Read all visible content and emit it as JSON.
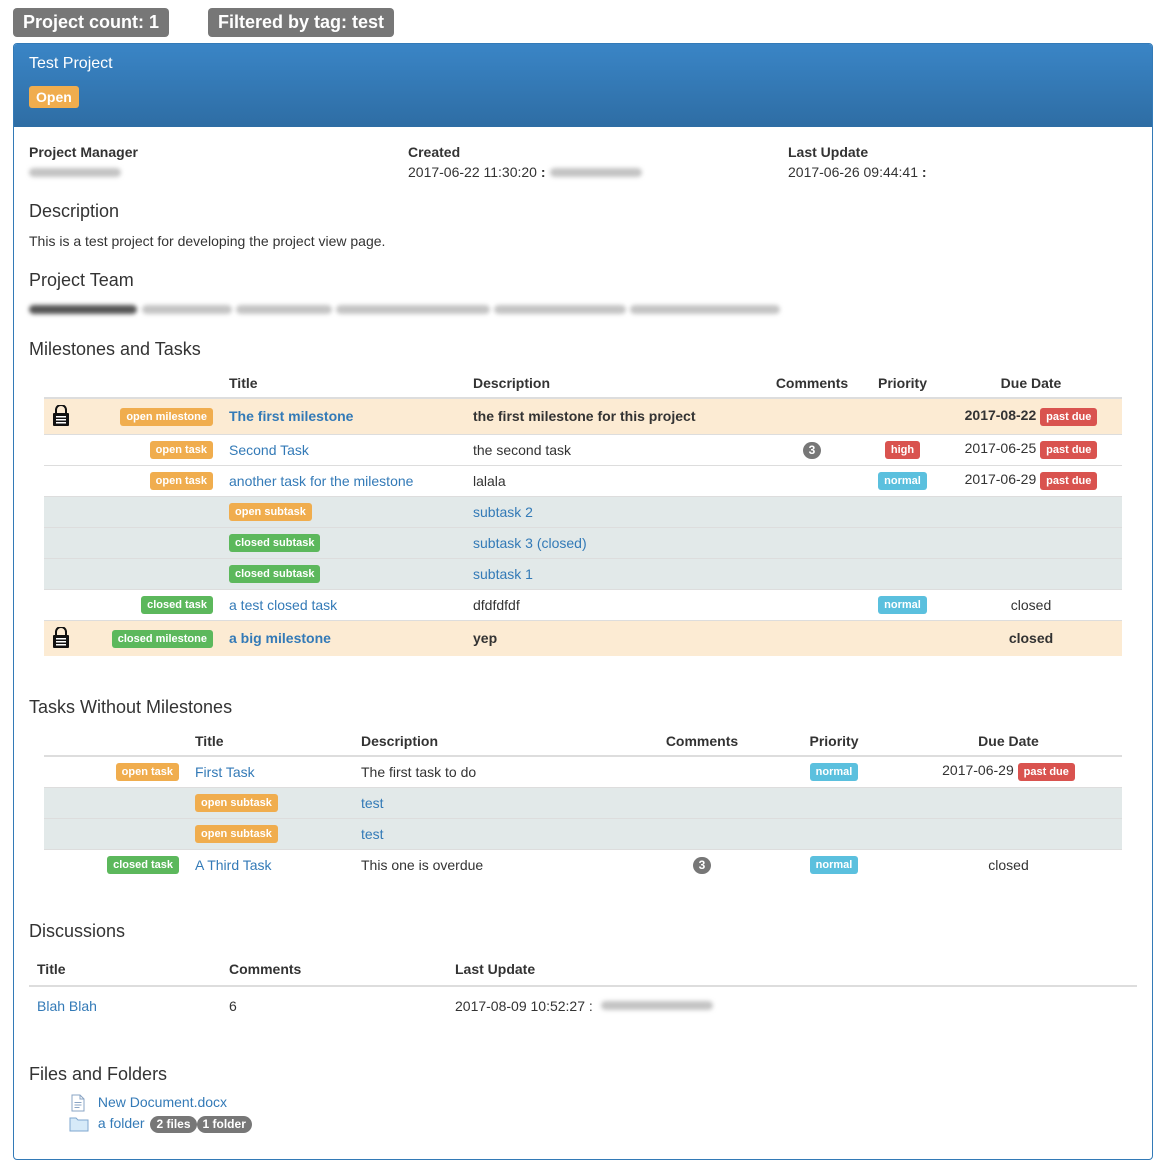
{
  "header": {
    "project_count": "Project count: 1",
    "filtered_by": "Filtered by tag: test"
  },
  "project": {
    "title": "Test Project",
    "status": "Open",
    "manager_label": "Project Manager",
    "created_label": "Created",
    "created_value": "2017-06-22 11:30:20",
    "created_sep": ":",
    "updated_label": "Last Update",
    "updated_value": "2017-06-26 09:44:41",
    "updated_sep": ":",
    "description_heading": "Description",
    "description": "This is a test project for developing the project view page.",
    "team_heading": "Project Team"
  },
  "milestones": {
    "heading": "Milestones and Tasks",
    "columns": {
      "title": "Title",
      "description": "Description",
      "comments": "Comments",
      "priority": "Priority",
      "due": "Due Date"
    },
    "rows": [
      {
        "kind": "milestone",
        "badge": "open milestone",
        "title": "The first milestone",
        "description": "the first milestone for this project",
        "due": "2017-08-22",
        "due_badge": "past due"
      },
      {
        "kind": "task",
        "badge": "open task",
        "title": "Second Task",
        "description": "the second task",
        "comments": "3",
        "priority": "high",
        "due": "2017-06-25",
        "due_badge": "past due"
      },
      {
        "kind": "task",
        "badge": "open task",
        "title": "another task for the milestone",
        "description": "lalala",
        "priority": "normal",
        "due": "2017-06-29",
        "due_badge": "past due"
      },
      {
        "kind": "subtask",
        "badge": "open subtask",
        "title": "subtask 2"
      },
      {
        "kind": "subtask",
        "badge": "closed subtask",
        "title": "subtask 3 (closed)"
      },
      {
        "kind": "subtask",
        "badge": "closed subtask",
        "title": "subtask 1"
      },
      {
        "kind": "task",
        "badge": "closed task",
        "title": "a test closed task",
        "description": "dfdfdfdf",
        "priority": "normal",
        "due": "closed"
      },
      {
        "kind": "milestone",
        "badge": "closed milestone",
        "title": "a big milestone",
        "description": "yep",
        "due": "closed"
      }
    ]
  },
  "tasks_without": {
    "heading": "Tasks Without Milestones",
    "columns": {
      "title": "Title",
      "description": "Description",
      "comments": "Comments",
      "priority": "Priority",
      "due": "Due Date"
    },
    "rows": [
      {
        "kind": "task",
        "badge": "open task",
        "title": "First Task",
        "description": "The first task to do",
        "priority": "normal",
        "due": "2017-06-29",
        "due_badge": "past due"
      },
      {
        "kind": "subtask",
        "badge": "open subtask",
        "title": "test"
      },
      {
        "kind": "subtask",
        "badge": "open subtask",
        "title": "test"
      },
      {
        "kind": "task",
        "badge": "closed task",
        "title": "A Third Task",
        "description": "This one is overdue",
        "comments": "3",
        "priority": "normal",
        "due": "closed"
      }
    ]
  },
  "discussions": {
    "heading": "Discussions",
    "columns": {
      "title": "Title",
      "comments": "Comments",
      "updated": "Last Update"
    },
    "rows": [
      {
        "title": "Blah Blah",
        "comments": "6",
        "updated": "2017-08-09 10:52:27 :"
      }
    ]
  },
  "files": {
    "heading": "Files and Folders",
    "document": "New Document.docx",
    "folder": "a folder",
    "folder_files": "2 files",
    "folder_folders": "1 folder"
  },
  "colors": {
    "primary": "#337ab7",
    "warning": "#f0ad4e",
    "success": "#5cb85c",
    "danger": "#d9534f",
    "info": "#5bc0de",
    "milestone_row": "#fcebd3",
    "subtask_row": "#e2e9e9"
  }
}
